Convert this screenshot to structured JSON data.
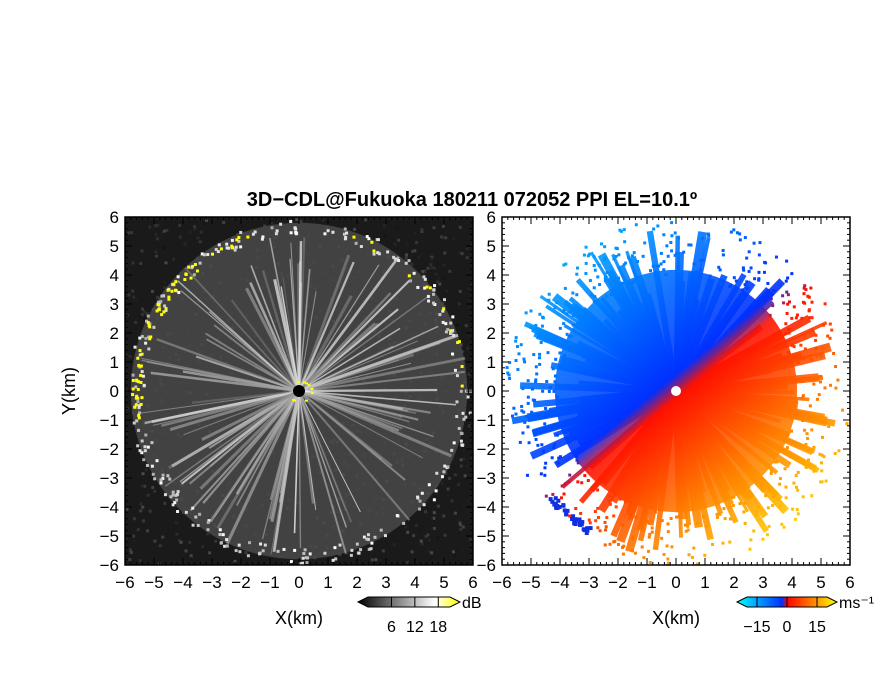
{
  "title": "3D−CDL@Fukuoka 180211 072052 PPI EL=10.1º",
  "chart_data": [
    {
      "type": "heatmap",
      "panel": "reflectivity",
      "xlabel": "X(km)",
      "ylabel": "Y(km)",
      "xlim": [
        -6,
        6
      ],
      "ylim": [
        -6,
        6
      ],
      "xticks": [
        "−6",
        "−5",
        "−4",
        "−3",
        "−2",
        "−1",
        "0",
        "1",
        "2",
        "3",
        "4",
        "5",
        "6"
      ],
      "yticks": [
        "6",
        "5",
        "4",
        "3",
        "2",
        "1",
        "0",
        "−1",
        "−2",
        "−3",
        "−4",
        "−5",
        "−6"
      ],
      "colorbar": {
        "unit": "dB",
        "ticks": [
          "6",
          "12",
          "18"
        ],
        "range": [
          0,
          21
        ],
        "colors": [
          "#000000",
          "#ffffff",
          "#ffff00"
        ]
      },
      "description_values": {
        "echo_radius_km": 5.8,
        "center_marker": [
          0,
          0
        ]
      }
    },
    {
      "type": "heatmap",
      "panel": "doppler_velocity",
      "xlabel": "X(km)",
      "xlim": [
        -6,
        6
      ],
      "ylim": [
        -6,
        6
      ],
      "xticks": [
        "−6",
        "−5",
        "−4",
        "−3",
        "−2",
        "−1",
        "0",
        "1",
        "2",
        "3",
        "4",
        "5",
        "6"
      ],
      "yticks": [
        "6",
        "5",
        "4",
        "3",
        "2",
        "1",
        "0",
        "−1",
        "−2",
        "−3",
        "−4",
        "−5",
        "−6"
      ],
      "colorbar": {
        "unit": "ms⁻¹",
        "ticks": [
          "−15",
          "0",
          "15"
        ],
        "range": [
          -20,
          20
        ],
        "colors": [
          "#00ffff",
          "#0030ff",
          "#ff0000",
          "#ff8000",
          "#ffff00"
        ]
      }
    }
  ]
}
